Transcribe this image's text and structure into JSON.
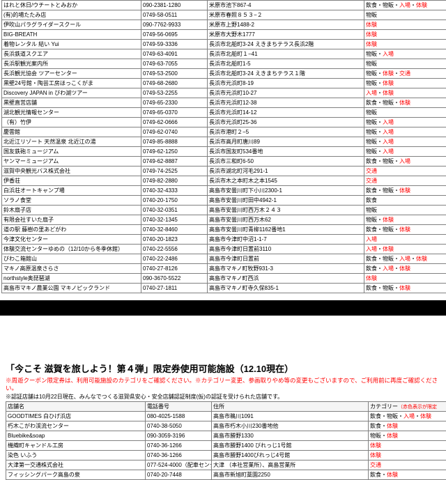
{
  "table1": {
    "rows": [
      {
        "name": "はれと休日/ウチートとみおか",
        "phone": "090-2381-1280",
        "addr": "米原市池下867-4",
        "cat": "飲食・物販・入場・体験"
      },
      {
        "name": "(有)的場たたみ店",
        "phone": "0749-58-0511",
        "addr": "米原市春照８５３−２",
        "cat": "物販"
      },
      {
        "name": "伊吹山パラグライダースクール",
        "phone": "090-7762-9933",
        "addr": "米原市上野1488-2",
        "cat": "体験"
      },
      {
        "name": "BIG-BREATH",
        "phone": "0749-56-0695",
        "addr": "米原市大野木1777",
        "cat": "体験"
      },
      {
        "name": "着物レンタル 結い Yui",
        "phone": "0749-59-3336",
        "addr": "長浜市北船町3-24 えきまちテラス長浜2階",
        "cat": "体験"
      },
      {
        "name": "長浜鉄道スクエア",
        "phone": "0749-63-4091",
        "addr": "長浜市北船町１−41",
        "cat": "物販・入場"
      },
      {
        "name": "長浜駅観光案内所",
        "phone": "0749-63-7055",
        "addr": "長浜市北船町1-5",
        "cat": "物販"
      },
      {
        "name": "長浜観光協会 ツアーセンター",
        "phone": "0749-53-2500",
        "addr": "長浜市北船町3-24 えきまちテラス１階",
        "cat": "物販・体験・交通"
      },
      {
        "name": "黒壁24号館・陶芸工房ほっこくがま",
        "phone": "0749-68-2680",
        "addr": "長浜市元浜町8-19",
        "cat": "物販・体験"
      },
      {
        "name": "Discovery JAPAN in びわ湖ツアー",
        "phone": "0749-53-2255",
        "addr": "長浜市元浜町10-27",
        "cat": "入場・体験"
      },
      {
        "name": "黒壁直営店舗",
        "phone": "0749-65-2330",
        "addr": "長浜市元浜町12-38",
        "cat": "飲食・物販・体験"
      },
      {
        "name": "湖北観光情報センター",
        "phone": "0749-65-0370",
        "addr": "長浜市元浜町14-12",
        "cat": "物販"
      },
      {
        "name": "（有）竹伊",
        "phone": "0749-62-0666",
        "addr": "長浜市元浜町25-36",
        "cat": "物販・入場"
      },
      {
        "name": "慶雲館",
        "phone": "0749-62-0740",
        "addr": "長浜市港町２−5",
        "cat": "物販・入場"
      },
      {
        "name": "北近江リゾート 天然温泉 北近江の湯",
        "phone": "0749-85-8888",
        "addr": "長浜市高月町唐川89",
        "cat": "物販・入場"
      },
      {
        "name": "国友鉄砲ミュージアム",
        "phone": "0749-62-1250",
        "addr": "長浜市国友町534番地",
        "cat": "物販・入場"
      },
      {
        "name": "ヤンマーミュージアム",
        "phone": "0749-62-8887",
        "addr": "長浜市三和町6-50",
        "cat": "飲食・物販・入場"
      },
      {
        "name": "滋賀中央観光バス株式会社",
        "phone": "0749-74-2525",
        "addr": "長浜市湖北町河毛291-1",
        "cat": "交通"
      },
      {
        "name": "伊香荘",
        "phone": "0749-82-2880",
        "addr": "長浜市木之本町木之本1545",
        "cat": "交通"
      },
      {
        "name": "白浜荘オートキャンプ場",
        "phone": "0740-32-4333",
        "addr": "高島市安曇川町下小川2300-1",
        "cat": "飲食・物販・体験"
      },
      {
        "name": "ソラノ食堂",
        "phone": "0740-20-1750",
        "addr": "高島市安曇川町田中4942-1",
        "cat": "飲食"
      },
      {
        "name": "鈴木扇子店",
        "phone": "0740-32-0351",
        "addr": "高島市安曇川町西万木２４３",
        "cat": "物販"
      },
      {
        "name": "有限会社すいた扇子",
        "phone": "0740-32-1345",
        "addr": "高島市安曇川町西万木62",
        "cat": "物販・体験"
      },
      {
        "name": "道の駅 藤樹の里あどがわ",
        "phone": "0740-32-8460",
        "addr": "高島市安曇川町青柳1162番地1",
        "cat": "飲食・物販・体験"
      },
      {
        "name": "今津文化センター",
        "phone": "0740-20-1823",
        "addr": "高島市今津町中沼1-1-7",
        "cat": "入場"
      },
      {
        "name": "体験交流センターゆめの（12/10から冬季休館）",
        "phone": "0740-22-5556",
        "addr": "高島市今津町日置前3110",
        "cat": "入場・体験"
      },
      {
        "name": "びわこ箱館山",
        "phone": "0740-22-2486",
        "addr": "高島市今津町日置前",
        "cat": "飲食・物販・入場・体験"
      },
      {
        "name": "マキノ高原温泉さらさ",
        "phone": "0740-27-8126",
        "addr": "高島市マキノ町牧野931-3",
        "cat": "飲食・入場・体験"
      },
      {
        "name": "northstyle奥琵琶湖",
        "phone": "090-3670-5522",
        "addr": "高島市マキノ町西浜",
        "cat": "体験"
      },
      {
        "name": "高島市マキノ農業公園 マキノピックランド",
        "phone": "0740-27-1811",
        "addr": "高島市マキノ町寺久保835-1",
        "cat": "飲食・物販・体験"
      }
    ]
  },
  "section2": {
    "title": "「今こそ 滋賀を旅しよう！第４弾」限定券使用可能施設（12.10現在）",
    "note1": "※周遊クーポン限定券は、利用可能施設のカテゴリをご確認ください。※カテゴリー変更、参画取りやめ等の変更もございますので、ご利用前に再度ご確認ください。",
    "note2": "※認証店舗は10月22日現在、みんなでつくる滋賀県安心・安全店舗認証制度(仮)の認証を受けられた店舗です。",
    "headers": {
      "name": "店舗名",
      "phone": "電話番号",
      "addr": "住所",
      "cat": "カテゴリー",
      "catnote": "（赤色表示が限定"
    },
    "rows": [
      {
        "name": "GOODTIMES 白ひげ浜店",
        "phone": "080-4025-1588",
        "addr": "高島市鵜川1091",
        "cat": "飲食・物販・入場・体験"
      },
      {
        "name": "朽木こがわ渓流センター",
        "phone": "0740-38-5050",
        "addr": "高島市朽木小川230番地他",
        "cat": "飲食・体験"
      },
      {
        "name": "Bluebike&soap",
        "phone": "090-3059-3196",
        "addr": "高島市勝野1330",
        "cat": "物販・体験"
      },
      {
        "name": "機織町キャンドル工房",
        "phone": "0740-36-1266",
        "addr": "高島市勝野1400 びれっじ1号館",
        "cat": "体験"
      },
      {
        "name": "染色 いふう",
        "phone": "0740-36-1266",
        "addr": "高島市勝野1400びれっじ4号館",
        "cat": "体験"
      },
      {
        "name": "大津第一交通株式会社",
        "phone": "077-524-4000（配車センター）",
        "addr": "大津 （本社営業所）、高島営業所",
        "cat": "交通"
      },
      {
        "name": "フィッシングパーク高島の泉",
        "phone": "0740-20-7448",
        "addr": "高島市新旭町藁園2250",
        "cat": "飲食・体験"
      }
    ]
  },
  "colors": {
    "red": "#ff0000",
    "border": "#808080"
  }
}
